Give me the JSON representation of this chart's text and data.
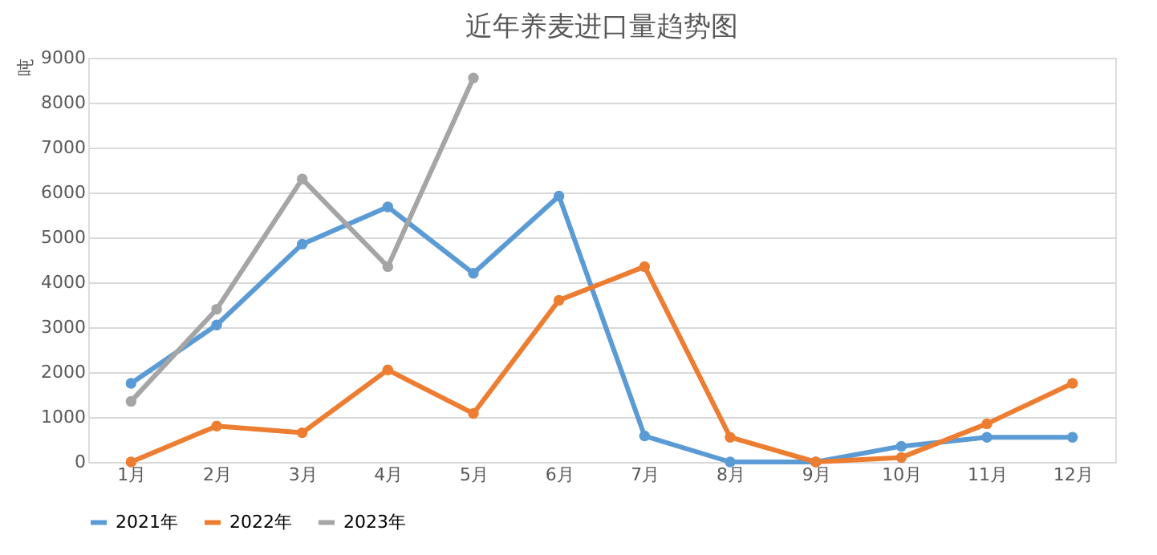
{
  "chart_data": {
    "type": "line",
    "title": "近年养麦进口量趋势图",
    "ylabel": "吨",
    "categories": [
      "1月",
      "2月",
      "3月",
      "4月",
      "5月",
      "6月",
      "7月",
      "8月",
      "9月",
      "10月",
      "11月",
      "12月"
    ],
    "series": [
      {
        "name": "2021年",
        "color": "#5b9bd5",
        "values": [
          1750,
          3050,
          4850,
          5680,
          4200,
          5920,
          580,
          0,
          0,
          350,
          550,
          550
        ]
      },
      {
        "name": "2022年",
        "color": "#ed7d31",
        "values": [
          0,
          800,
          650,
          2050,
          1080,
          3600,
          4350,
          550,
          0,
          100,
          850,
          1750
        ]
      },
      {
        "name": "2023年",
        "color": "#a5a5a5",
        "values": [
          1350,
          3400,
          6300,
          4350,
          8550,
          null,
          null,
          null,
          null,
          null,
          null,
          null
        ]
      }
    ],
    "ylim": [
      0,
      9000
    ],
    "yticks": [
      0,
      1000,
      2000,
      3000,
      4000,
      5000,
      6000,
      7000,
      8000,
      9000
    ],
    "grid": "y",
    "legend": "bottom",
    "marker": "circle",
    "line_style": "solid"
  }
}
